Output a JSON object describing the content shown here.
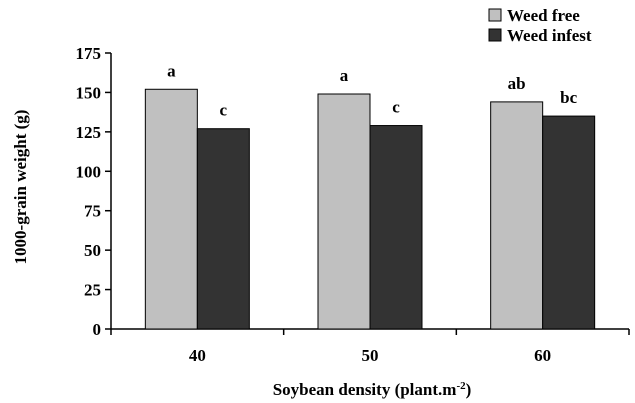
{
  "chart_data": {
    "type": "bar",
    "title": "",
    "xlabel": "Soybean density (plant.m",
    "xlabel_sup": "-2",
    "xlabel_close": ")",
    "ylabel": "1000-grain weight (g)",
    "categories": [
      "40",
      "50",
      "60"
    ],
    "ylim": [
      0,
      175
    ],
    "yticks": [
      0,
      25,
      50,
      75,
      100,
      125,
      150,
      175
    ],
    "grid": false,
    "legend_position": "top-right",
    "series": [
      {
        "name": "Weed free",
        "color": "#c0c0c0",
        "values": [
          152,
          149,
          144
        ],
        "labels": [
          "a",
          "a",
          "ab"
        ]
      },
      {
        "name": "Weed infest",
        "color": "#333333",
        "values": [
          127,
          129,
          135
        ],
        "labels": [
          "c",
          "c",
          "bc"
        ]
      }
    ]
  }
}
